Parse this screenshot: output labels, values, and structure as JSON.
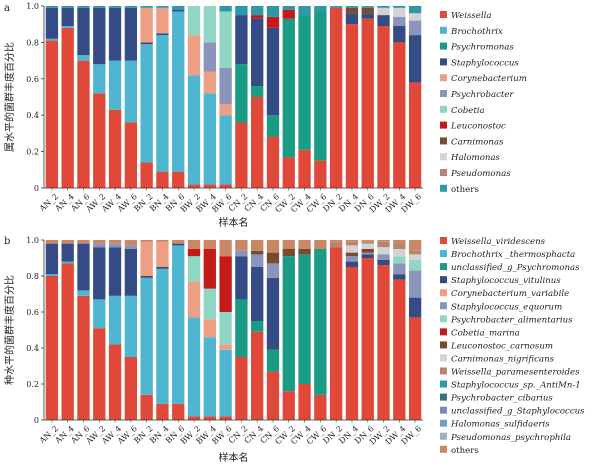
{
  "colors": {
    "weissella": "#e0493a",
    "brochothrix": "#4fb6d2",
    "psychromonas": "#1a9b83",
    "staphylococcus": "#344b86",
    "corynebacterium": "#ee9e82",
    "psychrobacter": "#8a94bd",
    "cobetia": "#8fd6c4",
    "leuconostoc": "#c41a1a",
    "carnimonas": "#7a4a2e",
    "halomonas": "#d3d3d3",
    "pseudomonas": "#b7856e",
    "others": "#2e97a8",
    "s_weissella_viridescens": "#e0493a",
    "s_brochothrix": "#4fb6d2",
    "s_uncl_psychromonas": "#1a9b83",
    "s_staph_vitulinus": "#344b86",
    "s_coryne_variabile": "#ee9e82",
    "s_staph_equorum": "#8a94bd",
    "s_psychrobacter_alimentarius": "#8fd6c4",
    "s_cobetia_marina": "#c41a1a",
    "s_leuconostoc_carnosum": "#7a4a2e",
    "s_carnimonas_nigrificans": "#d3d3d3",
    "s_weissella_paramesenteroides": "#b7856e",
    "s_staph_antimn1": "#2e97a8",
    "s_psychrobacter_cibarius": "#3a6f7a",
    "s_uncl_staphylococcus": "#7f88b8",
    "s_halomonas_sulfidaeris": "#6e9fc8",
    "s_pseudomonas_psychrophila": "#9bb3c4",
    "s_others": "#c98766"
  },
  "chart_data": [
    {
      "type": "bar",
      "panel_label": "a",
      "ylabel": "属水平的菌群丰度百分比",
      "xlabel": "样本名",
      "ylim": [
        0,
        1.0
      ],
      "yticks": [
        "0",
        "0.2",
        "0.4",
        "0.6",
        "0.8",
        "1.0"
      ],
      "categories": [
        "AN_2",
        "AN_4",
        "AN_6",
        "AW_2",
        "AW_4",
        "AW_6",
        "BN_2",
        "BN_4",
        "BN_6",
        "BW_2",
        "BW_4",
        "BW_6",
        "CN_2",
        "CN_4",
        "CN_6",
        "CW_2",
        "CW_4",
        "CW_6",
        "DN_2",
        "DN_4",
        "DN_6",
        "DW_2",
        "DW_4",
        "DW_6"
      ],
      "series": [
        {
          "name": "Weissella",
          "color_key": "weissella",
          "values": [
            0.81,
            0.88,
            0.7,
            0.52,
            0.43,
            0.36,
            0.14,
            0.09,
            0.09,
            0.02,
            0.02,
            0.02,
            0.36,
            0.5,
            0.28,
            0.17,
            0.21,
            0.15,
            0.99,
            0.9,
            0.93,
            0.89,
            0.8,
            0.58
          ]
        },
        {
          "name": "Brochothrix",
          "color_key": "brochothrix",
          "values": [
            0.01,
            0.01,
            0.03,
            0.16,
            0.27,
            0.34,
            0.65,
            0.75,
            0.88,
            0.6,
            0.5,
            0.38,
            0,
            0,
            0,
            0,
            0,
            0,
            0,
            0,
            0,
            0,
            0,
            0
          ]
        },
        {
          "name": "Psychromonas",
          "color_key": "psychromonas",
          "values": [
            0,
            0,
            0,
            0,
            0,
            0,
            0,
            0,
            0,
            0,
            0,
            0,
            0.32,
            0.06,
            0.12,
            0.76,
            0.74,
            0.82,
            0,
            0,
            0,
            0,
            0,
            0
          ]
        },
        {
          "name": "Staphylococcus",
          "color_key": "staphylococcus",
          "values": [
            0.17,
            0.1,
            0.26,
            0.31,
            0.29,
            0.29,
            0.01,
            0.01,
            0.01,
            0,
            0,
            0,
            0.27,
            0.37,
            0.48,
            0,
            0,
            0,
            0,
            0.06,
            0.03,
            0.06,
            0.09,
            0.26
          ]
        },
        {
          "name": "Corynebacterium",
          "color_key": "corynebacterium",
          "values": [
            0,
            0,
            0,
            0,
            0,
            0,
            0.19,
            0.14,
            0,
            0.22,
            0.12,
            0.06,
            0,
            0,
            0,
            0,
            0,
            0,
            0,
            0,
            0,
            0,
            0,
            0
          ]
        },
        {
          "name": "Psychrobacter",
          "color_key": "psychrobacter",
          "values": [
            0,
            0,
            0,
            0,
            0,
            0,
            0,
            0,
            0,
            0,
            0.16,
            0.2,
            0,
            0,
            0,
            0,
            0,
            0,
            0,
            0,
            0,
            0,
            0.05,
            0.08
          ]
        },
        {
          "name": "Cobetia",
          "color_key": "cobetia",
          "values": [
            0,
            0,
            0,
            0,
            0,
            0,
            0,
            0,
            0,
            0.16,
            0.2,
            0.31,
            0,
            0,
            0,
            0,
            0,
            0,
            0,
            0,
            0,
            0,
            0,
            0
          ]
        },
        {
          "name": "Leuconostoc",
          "color_key": "leuconostoc",
          "values": [
            0,
            0,
            0,
            0,
            0,
            0,
            0,
            0,
            0,
            0,
            0,
            0,
            0,
            0.02,
            0.06,
            0.05,
            0,
            0,
            0,
            0,
            0,
            0,
            0,
            0
          ]
        },
        {
          "name": "Carnimonas",
          "color_key": "carnimonas",
          "values": [
            0,
            0,
            0,
            0,
            0,
            0,
            0,
            0,
            0,
            0,
            0,
            0,
            0,
            0,
            0,
            0,
            0,
            0,
            0,
            0.03,
            0.03,
            0,
            0,
            0
          ]
        },
        {
          "name": "Halomonas",
          "color_key": "halomonas",
          "values": [
            0,
            0,
            0,
            0,
            0,
            0,
            0,
            0,
            0,
            0,
            0,
            0,
            0,
            0,
            0,
            0,
            0,
            0,
            0,
            0,
            0,
            0.04,
            0.05,
            0.04
          ]
        },
        {
          "name": "Pseudomonas",
          "color_key": "pseudomonas",
          "values": [
            0,
            0,
            0,
            0,
            0,
            0,
            0,
            0,
            0,
            0,
            0,
            0,
            0,
            0,
            0,
            0,
            0,
            0,
            0,
            0,
            0,
            0,
            0,
            0
          ]
        },
        {
          "name": "others",
          "color_key": "others",
          "values": [
            0.01,
            0.01,
            0.01,
            0.01,
            0.01,
            0.01,
            0.01,
            0.01,
            0.02,
            0,
            0,
            0.03,
            0.05,
            0.05,
            0.06,
            0.02,
            0.05,
            0.03,
            0.01,
            0.01,
            0.01,
            0.01,
            0.01,
            0.04
          ]
        }
      ]
    },
    {
      "type": "bar",
      "panel_label": "b",
      "ylabel": "种水平的菌群丰度百分比",
      "xlabel": "样本名",
      "ylim": [
        0,
        1.0
      ],
      "yticks": [
        "0",
        "0.2",
        "0.4",
        "0.6",
        "0.8",
        "1.0"
      ],
      "categories": [
        "AN_2",
        "AN_4",
        "AN_6",
        "AW_2",
        "AW_4",
        "AW_6",
        "BN_2",
        "BN_4",
        "BN_6",
        "BW_2",
        "BW_4",
        "BW_6",
        "CN_2",
        "CN_4",
        "CN_6",
        "CW_2",
        "CW_4",
        "CW_6",
        "DN_2",
        "DN_4",
        "DN_6",
        "DW_2",
        "DW_4",
        "DW_6"
      ],
      "series": [
        {
          "name": "Weissella_viridescens",
          "color_key": "s_weissella_viridescens",
          "values": [
            0.8,
            0.87,
            0.69,
            0.51,
            0.42,
            0.35,
            0.14,
            0.09,
            0.09,
            0.02,
            0.02,
            0.02,
            0.35,
            0.49,
            0.27,
            0.16,
            0.2,
            0.14,
            0.96,
            0.85,
            0.9,
            0.86,
            0.78,
            0.57
          ]
        },
        {
          "name": "Brochothrix _thermosphacta",
          "color_key": "s_brochothrix",
          "values": [
            0.01,
            0.01,
            0.03,
            0.16,
            0.27,
            0.34,
            0.65,
            0.75,
            0.88,
            0.55,
            0.44,
            0.37,
            0,
            0,
            0,
            0,
            0,
            0,
            0,
            0,
            0,
            0,
            0,
            0
          ]
        },
        {
          "name": "unclassified_g_Psychromonas",
          "color_key": "s_uncl_psychromonas",
          "values": [
            0,
            0,
            0,
            0,
            0,
            0,
            0,
            0,
            0,
            0,
            0,
            0,
            0.32,
            0.06,
            0.12,
            0.75,
            0.72,
            0.81,
            0,
            0,
            0,
            0,
            0,
            0
          ]
        },
        {
          "name": "Staphylococcus_vitulinus",
          "color_key": "s_staph_vitulinus",
          "values": [
            0.17,
            0.1,
            0.26,
            0.29,
            0.27,
            0.26,
            0.01,
            0.01,
            0.01,
            0,
            0,
            0,
            0.24,
            0.3,
            0.4,
            0,
            0,
            0,
            0,
            0.03,
            0.02,
            0.03,
            0.03,
            0.11
          ]
        },
        {
          "name": "Corynebacterium_variabile",
          "color_key": "s_coryne_variabile",
          "values": [
            0,
            0,
            0,
            0,
            0,
            0,
            0.19,
            0.14,
            0,
            0.2,
            0.1,
            0.03,
            0,
            0,
            0,
            0,
            0,
            0,
            0,
            0,
            0,
            0,
            0,
            0
          ]
        },
        {
          "name": "Staphylococcus_equorum",
          "color_key": "s_staph_equorum",
          "values": [
            0,
            0,
            0,
            0.02,
            0.02,
            0.02,
            0,
            0,
            0,
            0,
            0,
            0,
            0.03,
            0.07,
            0.08,
            0,
            0,
            0,
            0,
            0.03,
            0.01,
            0.03,
            0.06,
            0.15
          ]
        },
        {
          "name": "Psychrobacter_alimentarius",
          "color_key": "s_psychrobacter_alimentarius",
          "values": [
            0,
            0,
            0,
            0,
            0,
            0,
            0,
            0,
            0,
            0.14,
            0.17,
            0.18,
            0,
            0,
            0,
            0,
            0,
            0,
            0,
            0,
            0,
            0,
            0.04,
            0.06
          ]
        },
        {
          "name": "Cobetia_marina",
          "color_key": "s_cobetia_marina",
          "values": [
            0,
            0,
            0,
            0,
            0,
            0,
            0,
            0,
            0,
            0.04,
            0.22,
            0.31,
            0,
            0,
            0,
            0,
            0,
            0,
            0,
            0,
            0,
            0,
            0,
            0
          ]
        },
        {
          "name": "Leuconostoc_carnosum",
          "color_key": "s_leuconostoc_carnosum",
          "values": [
            0,
            0,
            0,
            0,
            0,
            0,
            0,
            0,
            0,
            0,
            0,
            0,
            0,
            0.02,
            0.06,
            0.04,
            0.03,
            0,
            0,
            0.02,
            0.02,
            0,
            0,
            0
          ]
        },
        {
          "name": "Carnimonas_nigrificans",
          "color_key": "s_carnimonas_nigrificans",
          "values": [
            0,
            0,
            0,
            0,
            0,
            0,
            0,
            0,
            0,
            0,
            0,
            0,
            0,
            0,
            0,
            0,
            0,
            0,
            0,
            0.04,
            0.03,
            0.04,
            0.04,
            0.03
          ]
        },
        {
          "name": "Weissella_paramesenteroides",
          "color_key": "s_weissella_paramesenteroides",
          "values": [
            0,
            0,
            0,
            0,
            0,
            0,
            0,
            0,
            0,
            0,
            0,
            0,
            0,
            0,
            0,
            0,
            0,
            0,
            0.03,
            0.02,
            0.01,
            0.03,
            0.03,
            0.02
          ]
        },
        {
          "name": "Staphylococcus_sp._AntiMn-1",
          "color_key": "s_staph_antimn1",
          "values": [
            0,
            0,
            0,
            0,
            0,
            0,
            0,
            0,
            0,
            0,
            0,
            0,
            0,
            0,
            0,
            0,
            0,
            0,
            0,
            0,
            0,
            0,
            0,
            0
          ]
        },
        {
          "name": "Psychrobacter_cibarius",
          "color_key": "s_psychrobacter_cibarius",
          "values": [
            0,
            0,
            0,
            0,
            0,
            0,
            0,
            0,
            0,
            0,
            0,
            0,
            0,
            0,
            0,
            0,
            0,
            0,
            0,
            0,
            0,
            0,
            0,
            0
          ]
        },
        {
          "name": "unclassified_g_Staphylococcus",
          "color_key": "s_uncl_staphylococcus",
          "values": [
            0,
            0,
            0,
            0,
            0,
            0,
            0,
            0,
            0,
            0,
            0,
            0,
            0,
            0,
            0,
            0,
            0,
            0,
            0,
            0,
            0,
            0,
            0,
            0
          ]
        },
        {
          "name": "Halomonas_sulfidaeris",
          "color_key": "s_halomonas_sulfidaeris",
          "values": [
            0,
            0,
            0,
            0,
            0,
            0,
            0,
            0,
            0,
            0,
            0,
            0,
            0,
            0,
            0,
            0,
            0,
            0,
            0,
            0,
            0,
            0,
            0,
            0
          ]
        },
        {
          "name": "Pseudomonas_psychrophila",
          "color_key": "s_pseudomonas_psychrophila",
          "values": [
            0,
            0,
            0,
            0,
            0,
            0,
            0,
            0,
            0,
            0,
            0,
            0,
            0,
            0,
            0,
            0,
            0,
            0,
            0,
            0,
            0,
            0,
            0,
            0
          ]
        },
        {
          "name": "others",
          "color_key": "s_others",
          "values": [
            0.02,
            0.02,
            0.02,
            0.02,
            0.02,
            0.03,
            0.01,
            0.01,
            0.02,
            0.05,
            0.05,
            0.09,
            0.06,
            0.06,
            0.07,
            0.05,
            0.05,
            0.05,
            0.01,
            0.01,
            0.01,
            0.01,
            0.02,
            0.06
          ]
        }
      ]
    }
  ]
}
